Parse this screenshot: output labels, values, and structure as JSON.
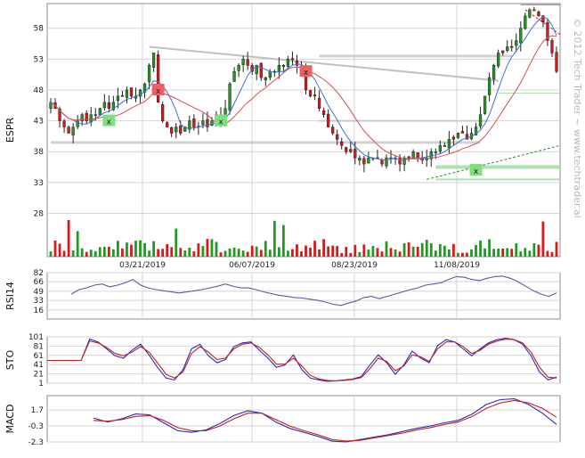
{
  "chart_data": [
    {
      "panel": "price",
      "type": "candlestick",
      "ylabel": "ESPR",
      "y_ticks": [
        58,
        53,
        48,
        43,
        38,
        33,
        28
      ],
      "ylim": [
        21,
        62
      ],
      "x_tick_labels": [
        "03/21/2019",
        "06/07/2019",
        "08/23/2019",
        "11/08/2019"
      ],
      "grid": true,
      "overlays": [
        "price",
        "moving-average-fast",
        "moving-average-slow",
        "volume",
        "trendlines",
        "support-resistance-zones"
      ],
      "signals": [
        {
          "label": "x",
          "type": "sell",
          "date_index": 24,
          "price": 48
        },
        {
          "label": "x",
          "type": "sell",
          "date_index": 57,
          "price": 51
        },
        {
          "label": "x",
          "type": "buy",
          "date_index": 13,
          "price": 43
        },
        {
          "label": "x",
          "type": "buy",
          "date_index": 38,
          "price": 43
        },
        {
          "label": "x",
          "type": "buy",
          "date_index": 95,
          "price": 35
        }
      ],
      "close": [
        46,
        45,
        43,
        42,
        41,
        42,
        43,
        44,
        43,
        44,
        44,
        45,
        46,
        45,
        46,
        47,
        47,
        48,
        47,
        47,
        48,
        49,
        52,
        54,
        46,
        43,
        42,
        41,
        42,
        41,
        42,
        43,
        42,
        42,
        43,
        42,
        43,
        44,
        43,
        45,
        49,
        51,
        52,
        53,
        52,
        51,
        52,
        50,
        50,
        51,
        51,
        52,
        52,
        53,
        53,
        52,
        51,
        48,
        47,
        47,
        45,
        44,
        42,
        41,
        40,
        39,
        38,
        38,
        37,
        37,
        36,
        37,
        37,
        37,
        36,
        37,
        37,
        37,
        36,
        37,
        37,
        38,
        37,
        37,
        37,
        38,
        38,
        39,
        39,
        40,
        40,
        41,
        41,
        40,
        41,
        42,
        44,
        47,
        50,
        52,
        54,
        54,
        55,
        55,
        56,
        58,
        60,
        61,
        61,
        60,
        59,
        56,
        54,
        51
      ]
    },
    {
      "panel": "rsi",
      "type": "line",
      "ylabel": "RSI14",
      "y_ticks": [
        82,
        66,
        49,
        33,
        16
      ],
      "ylim": [
        0,
        82
      ],
      "values": [
        44,
        52,
        55,
        60,
        62,
        57,
        60,
        64,
        70,
        60,
        55,
        52,
        50,
        48,
        46,
        48,
        50,
        52,
        55,
        58,
        62,
        58,
        55,
        55,
        52,
        48,
        45,
        42,
        40,
        38,
        37,
        35,
        33,
        30,
        26,
        24,
        28,
        32,
        38,
        40,
        36,
        40,
        44,
        48,
        52,
        55,
        60,
        62,
        64,
        70,
        75,
        74,
        70,
        68,
        72,
        75,
        76,
        72,
        66,
        58,
        50,
        44,
        40,
        46
      ]
    },
    {
      "panel": "stochastic",
      "type": "line",
      "ylabel": "STO",
      "y_ticks": [
        101,
        81,
        61,
        41,
        21,
        1
      ],
      "ylim": [
        1,
        101
      ],
      "series": [
        {
          "values": [
            50,
            50,
            50,
            50,
            50,
            96,
            90,
            75,
            60,
            55,
            72,
            85,
            62,
            35,
            12,
            8,
            30,
            75,
            85,
            60,
            45,
            52,
            80,
            88,
            90,
            72,
            55,
            35,
            40,
            62,
            30,
            12,
            8,
            5,
            6,
            8,
            10,
            15,
            40,
            62,
            45,
            20,
            40,
            70,
            55,
            45,
            82,
            95,
            90,
            75,
            60,
            75,
            88,
            95,
            98,
            95,
            85,
            60,
            25,
            8,
            14
          ]
        },
        {
          "values": [
            50,
            50,
            50,
            50,
            50,
            92,
            88,
            78,
            65,
            60,
            68,
            80,
            68,
            45,
            20,
            12,
            25,
            65,
            80,
            68,
            52,
            55,
            75,
            85,
            88,
            78,
            62,
            42,
            42,
            55,
            38,
            18,
            10,
            7,
            6,
            7,
            9,
            13,
            32,
            55,
            48,
            28,
            38,
            62,
            58,
            48,
            75,
            90,
            90,
            80,
            65,
            72,
            85,
            92,
            96,
            95,
            88,
            68,
            35,
            14,
            12
          ]
        }
      ]
    },
    {
      "panel": "macd",
      "type": "line",
      "ylabel": "MACD",
      "y_ticks": [
        1.7,
        -0.3,
        -2.3
      ],
      "ylim": [
        -2.3,
        3.5
      ],
      "series": [
        {
          "values": [
            0.7,
            0.2,
            0.6,
            1.2,
            1.1,
            0.1,
            -0.9,
            -1.1,
            -0.8,
            0.0,
            1.0,
            1.6,
            1.3,
            0.2,
            -0.6,
            -1.1,
            -1.6,
            -2.2,
            -2.3,
            -2.0,
            -1.7,
            -1.4,
            -1.0,
            -0.6,
            -0.3,
            0.1,
            0.4,
            1.2,
            2.4,
            3.0,
            3.1,
            2.4,
            1.3,
            -0.1
          ]
        },
        {
          "values": [
            0.4,
            0.3,
            0.5,
            0.9,
            1.0,
            0.4,
            -0.5,
            -0.9,
            -0.9,
            -0.3,
            0.6,
            1.3,
            1.3,
            0.5,
            -0.3,
            -0.9,
            -1.4,
            -2.0,
            -2.2,
            -2.1,
            -1.8,
            -1.5,
            -1.2,
            -0.8,
            -0.5,
            -0.1,
            0.2,
            0.9,
            1.9,
            2.6,
            2.9,
            2.6,
            1.9,
            0.8
          ]
        }
      ]
    }
  ],
  "watermark": "© 2012 Tech Trader ~ www.techtrader.ai",
  "colors": {
    "up": "#1f9a1f",
    "down": "#d81818",
    "ma_fast": "#3f6fd0",
    "ma_slow": "#d05050",
    "rsi": "#5a5aa8",
    "sto_k": "#2a2ab8",
    "sto_d": "#c02020",
    "sell_marker": "#ee6060",
    "buy_marker": "#80e080",
    "trendline_grey": "#c0c0c0",
    "support_green": "#8ad88a"
  }
}
